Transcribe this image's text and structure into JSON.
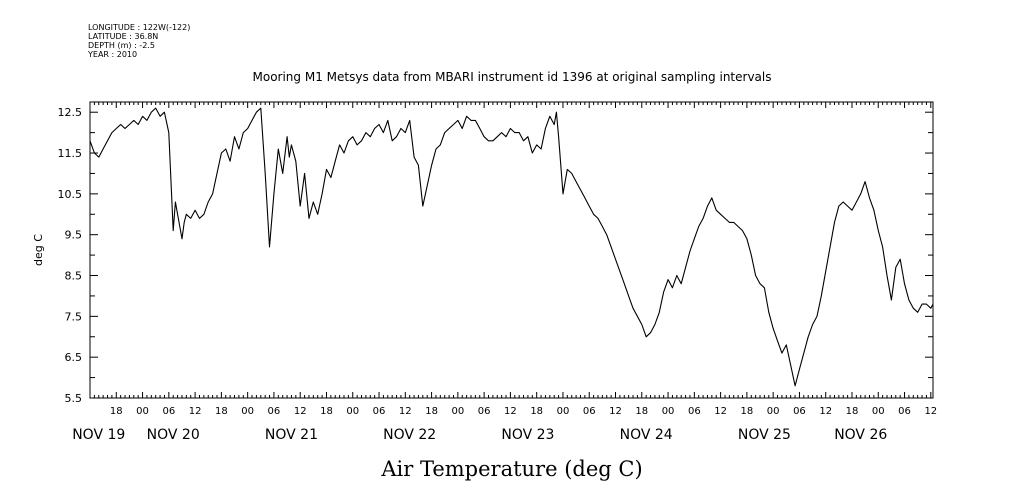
{
  "header": {
    "longitude": "LONGITUDE : 122W(-122)",
    "latitude": "LATITUDE : 36.8N",
    "depth": "DEPTH (m) : -2.5",
    "year": "YEAR : 2010"
  },
  "chart_data": {
    "type": "line",
    "title": "Mooring M1 Metsys data from MBARI instrument id 1396 at original sampling intervals",
    "xlabel": "Air Temperature (deg C)",
    "ylabel": "deg C",
    "ylim": [
      5.5,
      12.75
    ],
    "yticks": [
      "5.5",
      "6.5",
      "7.5",
      "8.5",
      "9.5",
      "10.5",
      "11.5",
      "12.5"
    ],
    "x_unit": "hours since NOV 19 00:00 (2010)",
    "xlim": [
      12,
      204.5
    ],
    "hour_ticks": [
      {
        "x": 18,
        "label": "18"
      },
      {
        "x": 24,
        "label": "00"
      },
      {
        "x": 30,
        "label": "06"
      },
      {
        "x": 36,
        "label": "12"
      },
      {
        "x": 42,
        "label": "18"
      },
      {
        "x": 48,
        "label": "00"
      },
      {
        "x": 54,
        "label": "06"
      },
      {
        "x": 60,
        "label": "12"
      },
      {
        "x": 66,
        "label": "18"
      },
      {
        "x": 72,
        "label": "00"
      },
      {
        "x": 78,
        "label": "06"
      },
      {
        "x": 84,
        "label": "12"
      },
      {
        "x": 90,
        "label": "18"
      },
      {
        "x": 96,
        "label": "00"
      },
      {
        "x": 102,
        "label": "06"
      },
      {
        "x": 108,
        "label": "12"
      },
      {
        "x": 114,
        "label": "18"
      },
      {
        "x": 120,
        "label": "00"
      },
      {
        "x": 126,
        "label": "06"
      },
      {
        "x": 132,
        "label": "12"
      },
      {
        "x": 138,
        "label": "18"
      },
      {
        "x": 144,
        "label": "00"
      },
      {
        "x": 150,
        "label": "06"
      },
      {
        "x": 156,
        "label": "12"
      },
      {
        "x": 162,
        "label": "18"
      },
      {
        "x": 168,
        "label": "00"
      },
      {
        "x": 174,
        "label": "06"
      },
      {
        "x": 180,
        "label": "12"
      },
      {
        "x": 186,
        "label": "18"
      },
      {
        "x": 192,
        "label": "00"
      },
      {
        "x": 198,
        "label": "06"
      },
      {
        "x": 204,
        "label": "12"
      }
    ],
    "day_labels": [
      {
        "x": 14,
        "label": "NOV 19"
      },
      {
        "x": 31,
        "label": "NOV 20"
      },
      {
        "x": 58,
        "label": "NOV 21"
      },
      {
        "x": 85,
        "label": "NOV 22"
      },
      {
        "x": 112,
        "label": "NOV 23"
      },
      {
        "x": 139,
        "label": "NOV 24"
      },
      {
        "x": 166,
        "label": "NOV 25"
      },
      {
        "x": 188,
        "label": "NOV 26"
      }
    ],
    "series": [
      {
        "color": "#000000",
        "x": [
          12,
          13,
          14,
          15,
          16,
          17,
          18,
          19,
          20,
          21,
          22,
          23,
          24,
          25,
          26,
          27,
          28,
          29,
          30,
          31,
          31.5,
          32,
          33,
          33.5,
          34,
          35,
          36,
          37,
          38,
          39,
          40,
          41,
          42,
          43,
          44,
          45,
          46,
          47,
          48,
          49,
          50,
          51,
          52,
          53,
          54,
          55,
          56,
          57,
          57.5,
          58,
          59,
          60,
          61,
          62,
          63,
          64,
          65,
          66,
          67,
          68,
          69,
          70,
          71,
          72,
          73,
          74,
          75,
          76,
          77,
          78,
          79,
          80,
          81,
          82,
          83,
          84,
          85,
          86,
          87,
          88,
          89,
          90,
          91,
          92,
          93,
          94,
          95,
          96,
          97,
          98,
          99,
          100,
          101,
          102,
          103,
          104,
          105,
          106,
          107,
          108,
          109,
          110,
          111,
          112,
          113,
          114,
          115,
          116,
          117,
          118,
          118.5,
          119,
          120,
          121,
          122,
          123,
          124,
          125,
          126,
          127,
          128,
          129,
          130,
          131,
          132,
          133,
          134,
          135,
          136,
          137,
          138,
          139,
          140,
          141,
          142,
          143,
          144,
          145,
          146,
          147,
          148,
          149,
          150,
          151,
          152,
          153,
          154,
          155,
          156,
          157,
          158,
          159,
          160,
          161,
          162,
          163,
          164,
          165,
          166,
          167,
          168,
          169,
          170,
          171,
          172,
          173,
          174,
          175,
          176,
          177,
          178,
          179,
          180,
          181,
          182,
          183,
          184,
          185,
          186,
          187,
          188,
          189,
          190,
          191,
          192,
          193,
          194,
          195,
          196,
          197,
          198,
          199,
          200,
          201,
          202,
          203,
          204,
          204.5
        ],
        "y": [
          11.8,
          11.5,
          11.4,
          11.6,
          11.8,
          12.0,
          12.1,
          12.2,
          12.1,
          12.2,
          12.3,
          12.2,
          12.4,
          12.3,
          12.5,
          12.6,
          12.4,
          12.5,
          12.0,
          9.6,
          10.3,
          10.0,
          9.4,
          9.8,
          10.0,
          9.9,
          10.1,
          9.9,
          10.0,
          10.3,
          10.5,
          11.0,
          11.5,
          11.6,
          11.3,
          11.9,
          11.6,
          12.0,
          12.1,
          12.3,
          12.5,
          12.6,
          11.0,
          9.2,
          10.5,
          11.6,
          11.0,
          11.9,
          11.4,
          11.7,
          11.3,
          10.2,
          11.0,
          9.9,
          10.3,
          10.0,
          10.5,
          11.1,
          10.9,
          11.3,
          11.7,
          11.5,
          11.8,
          11.9,
          11.7,
          11.8,
          12.0,
          11.9,
          12.1,
          12.2,
          12.0,
          12.3,
          11.8,
          11.9,
          12.1,
          12.0,
          12.3,
          11.4,
          11.2,
          10.2,
          10.7,
          11.2,
          11.6,
          11.7,
          12.0,
          12.1,
          12.2,
          12.3,
          12.1,
          12.4,
          12.3,
          12.3,
          12.1,
          11.9,
          11.8,
          11.8,
          11.9,
          12.0,
          11.9,
          12.1,
          12.0,
          12.0,
          11.8,
          11.9,
          11.5,
          11.7,
          11.6,
          12.1,
          12.4,
          12.2,
          12.5,
          11.9,
          10.5,
          11.1,
          11.0,
          10.8,
          10.6,
          10.4,
          10.2,
          10.0,
          9.9,
          9.7,
          9.5,
          9.2,
          8.9,
          8.6,
          8.3,
          8.0,
          7.7,
          7.5,
          7.3,
          7.0,
          7.1,
          7.3,
          7.6,
          8.1,
          8.4,
          8.2,
          8.5,
          8.3,
          8.7,
          9.1,
          9.4,
          9.7,
          9.9,
          10.2,
          10.4,
          10.1,
          10.0,
          9.9,
          9.8,
          9.8,
          9.7,
          9.6,
          9.4,
          9.0,
          8.5,
          8.3,
          8.2,
          7.6,
          7.2,
          6.9,
          6.6,
          6.8,
          6.3,
          5.8,
          6.2,
          6.6,
          7.0,
          7.3,
          7.5,
          8.0,
          8.6,
          9.2,
          9.8,
          10.2,
          10.3,
          10.2,
          10.1,
          10.3,
          10.5,
          10.8,
          10.4,
          10.1,
          9.6,
          9.2,
          8.5,
          7.9,
          8.7,
          8.9,
          8.3,
          7.9,
          7.7,
          7.6,
          7.8,
          7.8,
          7.7,
          7.8
        ]
      }
    ],
    "grid": false
  }
}
